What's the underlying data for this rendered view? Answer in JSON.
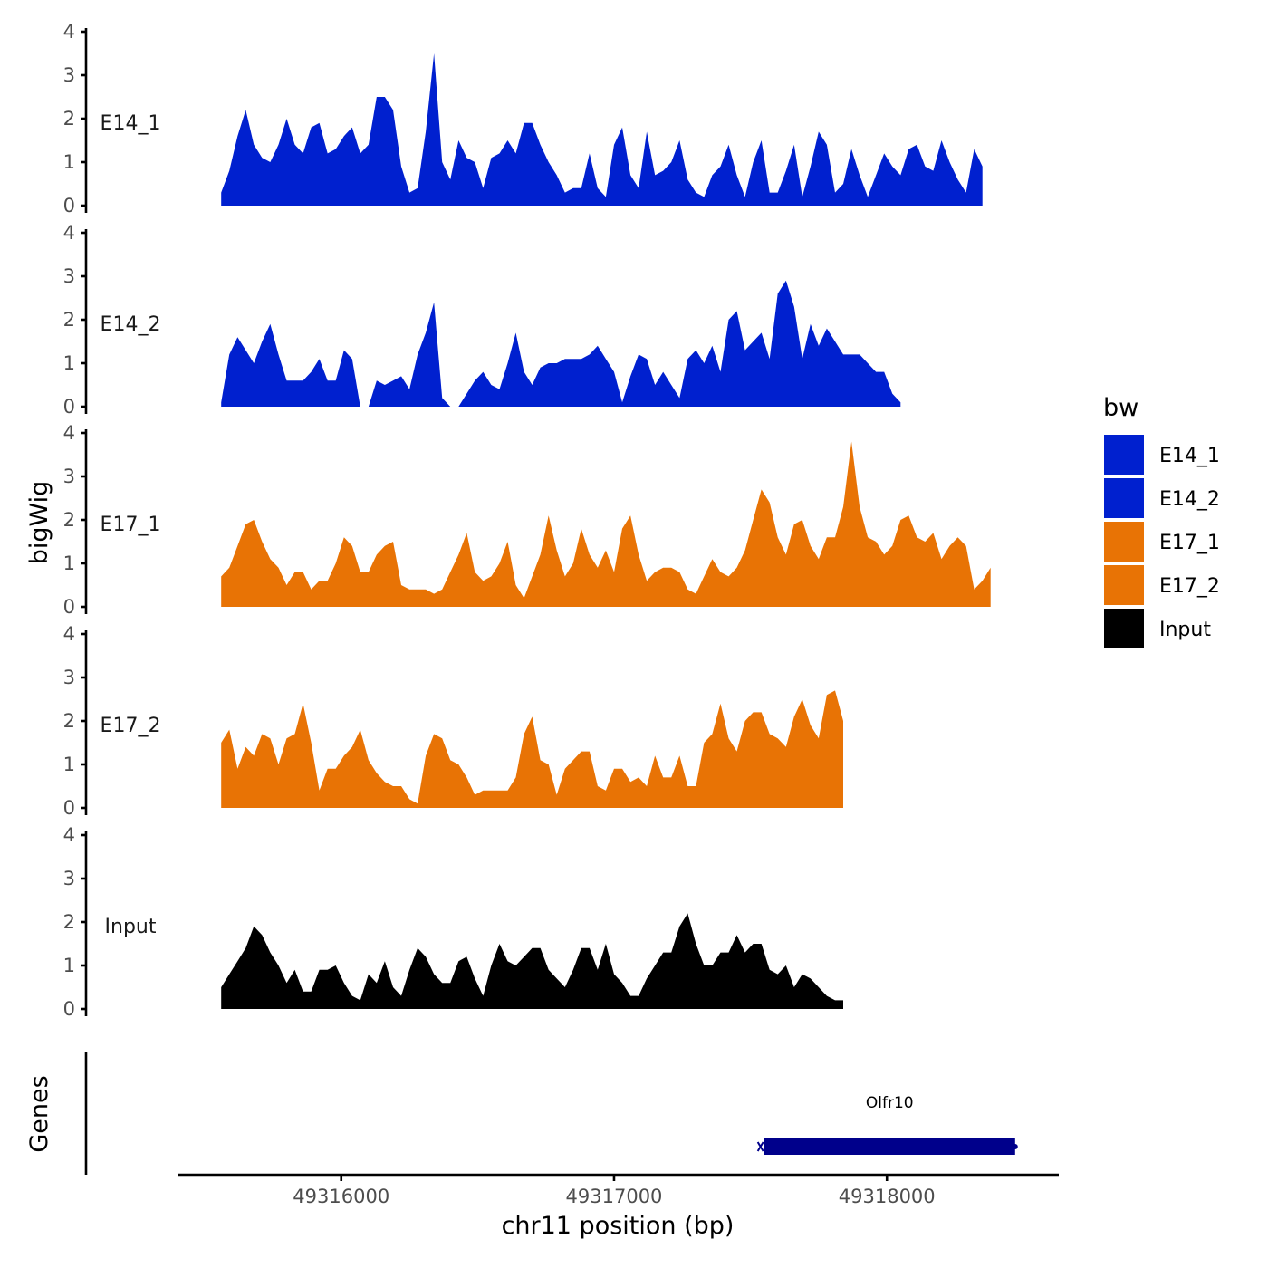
{
  "chart_data": {
    "type": "area",
    "title": "",
    "xlabel": "chr11 position (bp)",
    "ylabel": "bigWig",
    "genes_label": "Genes",
    "xlim": [
      49315400,
      49318630
    ],
    "x_ticks": [
      49316000,
      49317000,
      49318000
    ],
    "x_tick_labels": [
      "49316000",
      "49317000",
      "49318000"
    ],
    "ylim": [
      0,
      4
    ],
    "y_ticks": [
      0,
      1,
      2,
      3,
      4
    ],
    "y_tick_labels": [
      "0",
      "1",
      "2",
      "3",
      "4"
    ],
    "x_start": 49315560,
    "x_step": 30,
    "legend": {
      "title": "bw",
      "entries": [
        {
          "label": "E14_1",
          "color": "#0020CF"
        },
        {
          "label": "E14_2",
          "color": "#0020CF"
        },
        {
          "label": "E17_1",
          "color": "#E87305"
        },
        {
          "label": "E17_2",
          "color": "#E87305"
        },
        {
          "label": "Input",
          "color": "#000000"
        }
      ]
    },
    "series": [
      {
        "name": "E14_1",
        "color": "#0020CF",
        "values": [
          0.3,
          0.8,
          1.6,
          2.2,
          1.4,
          1.1,
          1.0,
          1.4,
          2.0,
          1.4,
          1.2,
          1.8,
          1.9,
          1.2,
          1.3,
          1.6,
          1.8,
          1.2,
          1.4,
          2.5,
          2.5,
          2.2,
          0.9,
          0.3,
          0.4,
          1.7,
          3.5,
          1.0,
          0.6,
          1.5,
          1.1,
          1.0,
          0.4,
          1.1,
          1.2,
          1.5,
          1.2,
          1.9,
          1.9,
          1.4,
          1.0,
          0.7,
          0.3,
          0.4,
          0.4,
          1.2,
          0.4,
          0.2,
          1.4,
          1.8,
          0.7,
          0.4,
          1.7,
          0.7,
          0.8,
          1.0,
          1.5,
          0.6,
          0.3,
          0.2,
          0.7,
          0.9,
          1.4,
          0.7,
          0.2,
          1.0,
          1.5,
          0.3,
          0.3,
          0.8,
          1.4,
          0.2,
          0.9,
          1.7,
          1.4,
          0.3,
          0.5,
          1.3,
          0.7,
          0.2,
          0.7,
          1.2,
          0.9,
          0.7,
          1.3,
          1.4,
          0.9,
          0.8,
          1.5,
          1.0,
          0.6,
          0.3,
          1.3,
          0.9
        ]
      },
      {
        "name": "E14_2",
        "color": "#0020CF",
        "values": [
          0.1,
          1.2,
          1.6,
          1.3,
          1.0,
          1.5,
          1.9,
          1.2,
          0.6,
          0.6,
          0.6,
          0.8,
          1.1,
          0.6,
          0.6,
          1.3,
          1.1,
          0.0,
          0.0,
          0.6,
          0.5,
          0.6,
          0.7,
          0.4,
          1.2,
          1.7,
          2.4,
          0.2,
          0.0,
          0.0,
          0.3,
          0.6,
          0.8,
          0.5,
          0.4,
          1.0,
          1.7,
          0.8,
          0.5,
          0.9,
          1.0,
          1.0,
          1.1,
          1.1,
          1.1,
          1.2,
          1.4,
          1.1,
          0.8,
          0.1,
          0.7,
          1.2,
          1.1,
          0.5,
          0.8,
          0.5,
          0.2,
          1.1,
          1.3,
          1.0,
          1.4,
          0.8,
          2.0,
          2.2,
          1.3,
          1.5,
          1.7,
          1.1,
          2.6,
          2.9,
          2.3,
          1.1,
          1.9,
          1.4,
          1.8,
          1.5,
          1.2,
          1.2,
          1.2,
          1.0,
          0.8,
          0.8,
          0.3,
          0.1
        ]
      },
      {
        "name": "E17_1",
        "color": "#E87305",
        "values": [
          0.7,
          0.9,
          1.4,
          1.9,
          2.0,
          1.5,
          1.1,
          0.9,
          0.5,
          0.8,
          0.8,
          0.4,
          0.6,
          0.6,
          1.0,
          1.6,
          1.4,
          0.8,
          0.8,
          1.2,
          1.4,
          1.5,
          0.5,
          0.4,
          0.4,
          0.4,
          0.3,
          0.4,
          0.8,
          1.2,
          1.7,
          0.8,
          0.6,
          0.7,
          1.0,
          1.5,
          0.5,
          0.2,
          0.7,
          1.2,
          2.1,
          1.3,
          0.7,
          1.0,
          1.8,
          1.2,
          0.9,
          1.3,
          0.8,
          1.8,
          2.1,
          1.2,
          0.6,
          0.8,
          0.9,
          0.9,
          0.8,
          0.4,
          0.3,
          0.7,
          1.1,
          0.8,
          0.7,
          0.9,
          1.3,
          2.0,
          2.7,
          2.4,
          1.6,
          1.2,
          1.9,
          2.0,
          1.4,
          1.1,
          1.6,
          1.6,
          2.3,
          3.8,
          2.3,
          1.6,
          1.5,
          1.2,
          1.4,
          2.0,
          2.1,
          1.6,
          1.5,
          1.7,
          1.1,
          1.4,
          1.6,
          1.4,
          0.4,
          0.6,
          0.9
        ]
      },
      {
        "name": "E17_2",
        "color": "#E87305",
        "values": [
          1.5,
          1.8,
          0.9,
          1.4,
          1.2,
          1.7,
          1.6,
          1.0,
          1.6,
          1.7,
          2.4,
          1.5,
          0.4,
          0.9,
          0.9,
          1.2,
          1.4,
          1.8,
          1.1,
          0.8,
          0.6,
          0.5,
          0.5,
          0.2,
          0.1,
          1.2,
          1.7,
          1.6,
          1.1,
          1.0,
          0.7,
          0.3,
          0.4,
          0.4,
          0.4,
          0.4,
          0.7,
          1.7,
          2.1,
          1.1,
          1.0,
          0.3,
          0.9,
          1.1,
          1.3,
          1.3,
          0.5,
          0.4,
          0.9,
          0.9,
          0.6,
          0.7,
          0.5,
          1.2,
          0.7,
          0.7,
          1.2,
          0.5,
          0.5,
          1.5,
          1.7,
          2.4,
          1.6,
          1.3,
          2.0,
          2.2,
          2.2,
          1.7,
          1.6,
          1.4,
          2.1,
          2.5,
          1.9,
          1.6,
          2.6,
          2.7,
          2.0
        ]
      },
      {
        "name": "Input",
        "color": "#000000",
        "values": [
          0.5,
          0.8,
          1.1,
          1.4,
          1.9,
          1.7,
          1.3,
          1.0,
          0.6,
          0.9,
          0.4,
          0.4,
          0.9,
          0.9,
          1.0,
          0.6,
          0.3,
          0.2,
          0.8,
          0.6,
          1.1,
          0.5,
          0.3,
          0.9,
          1.4,
          1.2,
          0.8,
          0.6,
          0.6,
          1.1,
          1.2,
          0.7,
          0.3,
          1.0,
          1.5,
          1.1,
          1.0,
          1.2,
          1.4,
          1.4,
          0.9,
          0.7,
          0.5,
          0.9,
          1.4,
          1.4,
          0.9,
          1.5,
          0.8,
          0.6,
          0.3,
          0.3,
          0.7,
          1.0,
          1.3,
          1.3,
          1.9,
          2.2,
          1.5,
          1.0,
          1.0,
          1.3,
          1.3,
          1.7,
          1.3,
          1.5,
          1.5,
          0.9,
          0.8,
          1.0,
          0.5,
          0.8,
          0.7,
          0.5,
          0.3,
          0.2,
          0.2
        ]
      }
    ],
    "genes": [
      {
        "name": "Olfr10",
        "start": 49317550,
        "end": 49318470,
        "strand": "+",
        "color": "#00008B"
      }
    ]
  }
}
